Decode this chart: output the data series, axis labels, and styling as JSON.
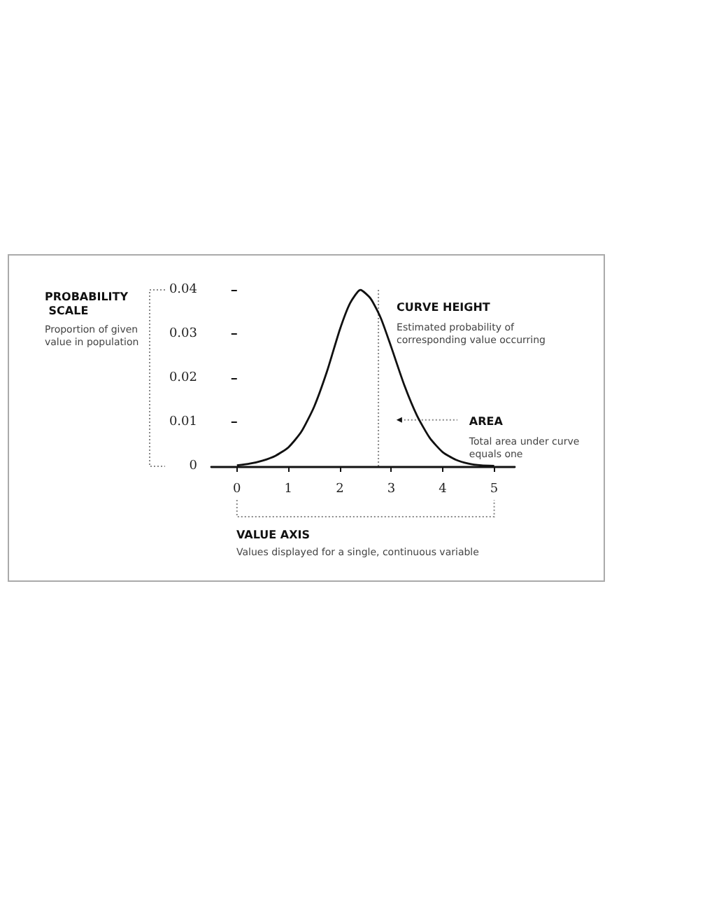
{
  "chart_data": {
    "type": "line",
    "x": [
      0,
      0.25,
      0.5,
      0.75,
      1,
      1.25,
      1.5,
      1.75,
      2,
      2.2,
      2.4,
      2.6,
      2.8,
      3,
      3.25,
      3.5,
      3.75,
      4,
      4.25,
      4.5,
      4.75,
      5
    ],
    "series": [
      {
        "color": "#111111",
        "values": [
          0.0002,
          0.0006,
          0.0013,
          0.0024,
          0.0043,
          0.0078,
          0.0135,
          0.0215,
          0.031,
          0.037,
          0.04,
          0.038,
          0.0335,
          0.027,
          0.0185,
          0.0115,
          0.0064,
          0.0032,
          0.0015,
          0.0006,
          0.0002,
          0.0001
        ]
      }
    ],
    "xlim": [
      -0.5,
      5.4
    ],
    "xticks": [
      0,
      1,
      2,
      3,
      4,
      5
    ],
    "ylim": [
      0,
      0.04
    ],
    "yticks": [
      0,
      0.01,
      0.02,
      0.03,
      0.04
    ],
    "ylabel": "PROBABILITY SCALE",
    "xlabel": "VALUE AXIS",
    "annotations": [
      {
        "text": "CURVE HEIGHT",
        "x": 2.75,
        "y": 0.036
      },
      "Estimated probability of corresponding value occurring",
      {
        "text": "AREA",
        "x": 3.1,
        "y": 0.0105
      },
      "Total area under curve equals one",
      "Proportion of given value in population",
      "Values displayed for a single, continuous variable"
    ],
    "ref_lines": [
      {
        "axis": "x",
        "value": 2.75,
        "color": "#888888",
        "line_style": "dotted"
      }
    ],
    "grid": false,
    "marker": "none",
    "line_style": "solid"
  }
}
